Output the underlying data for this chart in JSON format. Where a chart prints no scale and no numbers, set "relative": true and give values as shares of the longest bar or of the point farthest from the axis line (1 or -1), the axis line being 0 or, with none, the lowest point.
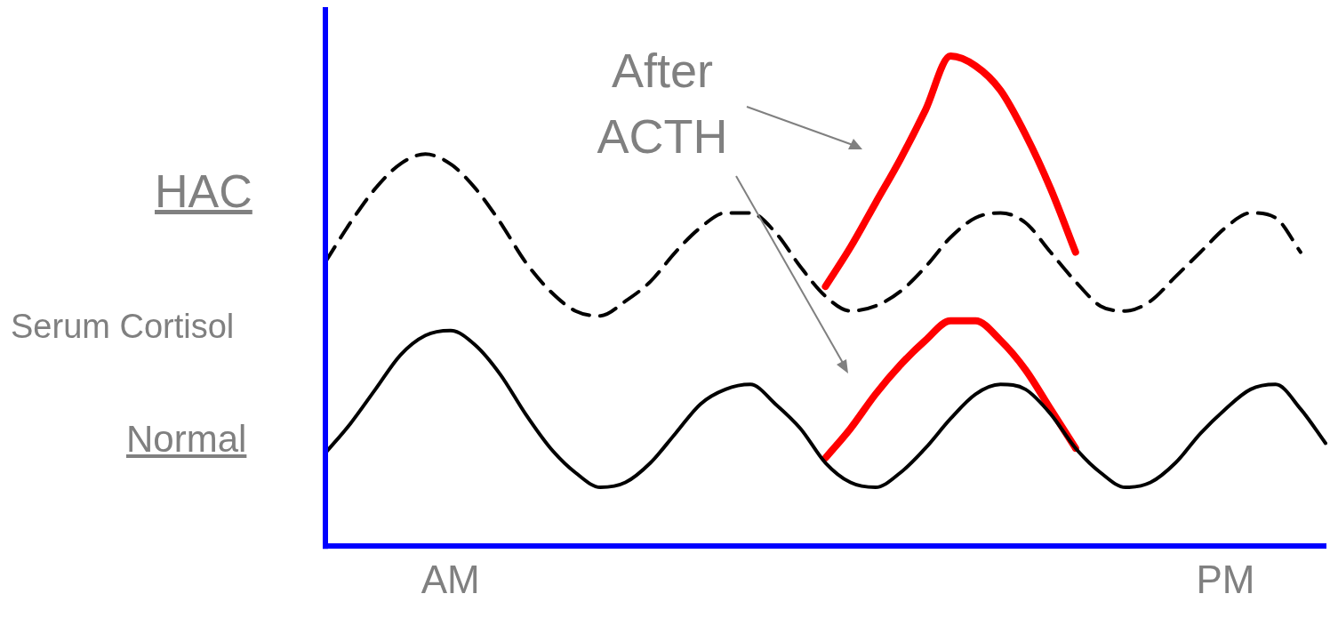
{
  "chart_data": {
    "type": "line",
    "relative": true,
    "ylabel": "Serum Cortisol",
    "categories": [
      null,
      null,
      null,
      null,
      null,
      "AM",
      null,
      null,
      null,
      null,
      null,
      null,
      null,
      null,
      null,
      null,
      null,
      null,
      null,
      null,
      null,
      null,
      null,
      null,
      null,
      null,
      null,
      null,
      null,
      null,
      null,
      null,
      null,
      null,
      null,
      null,
      "PM",
      null,
      null,
      null,
      null
    ],
    "annotations": [
      "After ACTH"
    ],
    "grid": false,
    "legend": false,
    "marker": "none",
    "series": [
      {
        "name": "HAC",
        "color": "#000000",
        "line_style": "dashed",
        "values": [
          0.58,
          0.66,
          0.73,
          0.78,
          0.8,
          0.78,
          0.73,
          0.66,
          0.58,
          0.52,
          0.48,
          0.47,
          0.5,
          0.54,
          0.6,
          0.65,
          0.68,
          0.68,
          0.64,
          0.57,
          0.51,
          0.48,
          0.49,
          0.52,
          0.57,
          0.63,
          0.67,
          0.68,
          0.66,
          0.6,
          0.54,
          0.49,
          0.48,
          0.5,
          0.55,
          0.6,
          0.65,
          0.68,
          0.67,
          0.6,
          null
        ]
      },
      {
        "name": "Normal",
        "color": "#000000",
        "line_style": "solid",
        "values": [
          0.19,
          0.25,
          0.32,
          0.39,
          0.43,
          0.44,
          0.41,
          0.35,
          0.27,
          0.2,
          0.15,
          0.12,
          0.13,
          0.17,
          0.23,
          0.29,
          0.32,
          0.33,
          0.29,
          0.24,
          0.17,
          0.13,
          0.12,
          0.15,
          0.2,
          0.26,
          0.31,
          0.33,
          0.32,
          0.27,
          0.2,
          0.15,
          0.12,
          0.13,
          0.17,
          0.23,
          0.28,
          0.32,
          0.33,
          0.28,
          0.21
        ]
      },
      {
        "color": "#ff0000",
        "line_style": "solid",
        "values": [
          null,
          null,
          null,
          null,
          null,
          null,
          null,
          null,
          null,
          null,
          null,
          null,
          null,
          null,
          null,
          null,
          null,
          null,
          null,
          null,
          0.53,
          0.61,
          0.7,
          0.79,
          0.89,
          1.0,
          0.98,
          0.93,
          0.84,
          0.73,
          0.6,
          null,
          null,
          null,
          null,
          null,
          null,
          null,
          null,
          null,
          null
        ]
      },
      {
        "color": "#ff0000",
        "line_style": "solid",
        "values": [
          null,
          null,
          null,
          null,
          null,
          null,
          null,
          null,
          null,
          null,
          null,
          null,
          null,
          null,
          null,
          null,
          null,
          null,
          null,
          null,
          0.18,
          0.24,
          0.31,
          0.37,
          0.42,
          0.46,
          0.46,
          0.42,
          0.36,
          0.28,
          0.2,
          null,
          null,
          null,
          null,
          null,
          null,
          null,
          null,
          null,
          null
        ]
      }
    ]
  }
}
